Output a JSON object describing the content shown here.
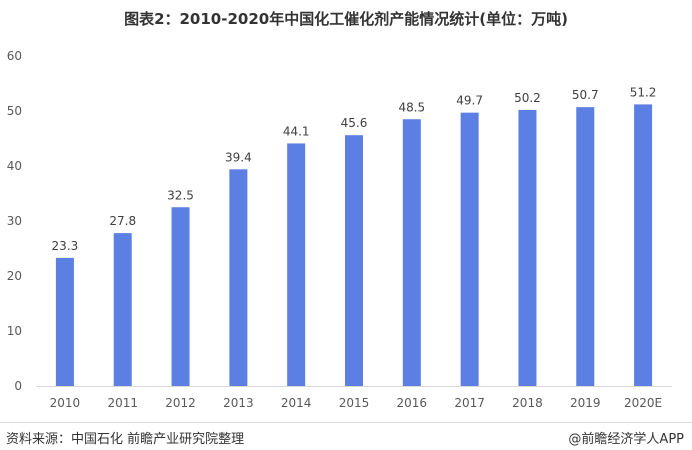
{
  "chart_data": {
    "type": "bar",
    "title": "图表2：2010-2020年中国化工催化剂产能情况统计(单位：万吨)",
    "categories": [
      "2010",
      "2011",
      "2012",
      "2013",
      "2014",
      "2015",
      "2016",
      "2017",
      "2018",
      "2019",
      "2020E"
    ],
    "values": [
      23.3,
      27.8,
      32.5,
      39.4,
      44.1,
      45.6,
      48.5,
      49.7,
      50.2,
      50.7,
      51.2
    ],
    "value_labels": [
      "23.3",
      "27.8",
      "32.5",
      "39.4",
      "44.1",
      "45.6",
      "48.5",
      "49.7",
      "50.2",
      "50.7",
      "51.2"
    ],
    "ylim": [
      0,
      60
    ],
    "yticks": [
      0,
      10,
      20,
      30,
      40,
      50,
      60
    ],
    "xlabel": "",
    "ylabel": "",
    "grid": false,
    "bar_color": "#5b7fe3"
  },
  "footer": {
    "source": "资料来源：中国石化 前瞻产业研究院整理",
    "brand": "@前瞻经济学人APP"
  }
}
